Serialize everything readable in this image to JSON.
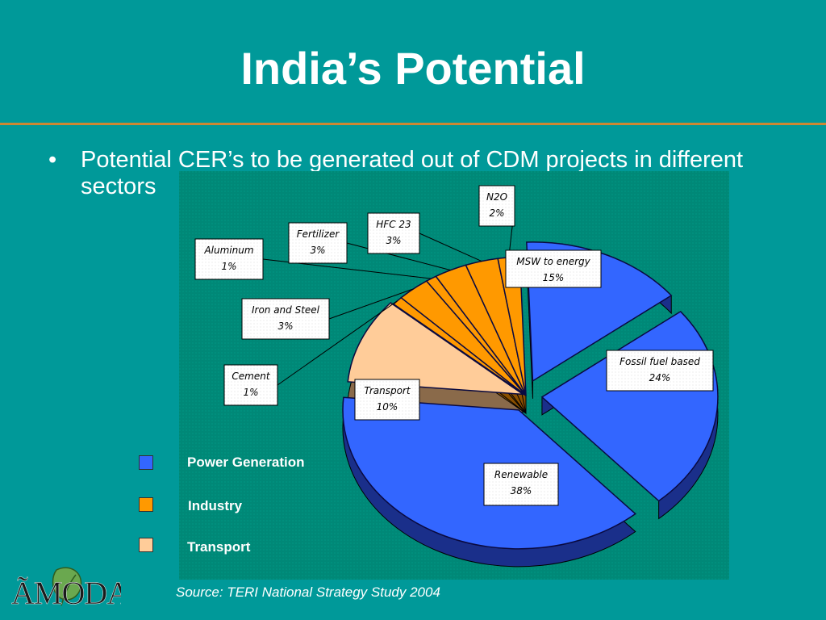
{
  "slide": {
    "title": "India’s Potential",
    "bullet": "Potential CER’s to be generated out of CDM projects in different sectors",
    "source": "Source: TERI National Strategy Study 2004",
    "logo_text": "ÃMODA"
  },
  "legend": [
    {
      "label": "Power Generation",
      "color": "#3366ff"
    },
    {
      "label": "Industry",
      "color": "#ff9900"
    },
    {
      "label": "Transport",
      "color": "#ffcc99"
    }
  ],
  "colors": {
    "background": "#009999",
    "rule": "#cc8833",
    "plot_area": "#00806e",
    "power": "#3366ff",
    "power_dark": "#1a2f8a",
    "industry": "#ff9900",
    "industry_dark": "#8a4f00",
    "transport": "#ffcc99",
    "transport_dark": "#8a6a4a"
  },
  "chart_data": {
    "type": "pie",
    "slices": [
      {
        "label": "MSW to energy",
        "value": 15,
        "group": "Power Generation"
      },
      {
        "label": "Fossil fuel based",
        "value": 24,
        "group": "Power Generation"
      },
      {
        "label": "Renewable",
        "value": 38,
        "group": "Power Generation"
      },
      {
        "label": "Transport",
        "value": 10,
        "group": "Transport"
      },
      {
        "label": "Cement",
        "value": 1,
        "group": "Industry"
      },
      {
        "label": "Iron and Steel",
        "value": 3,
        "group": "Industry"
      },
      {
        "label": "Aluminum",
        "value": 1,
        "group": "Industry"
      },
      {
        "label": "Fertilizer",
        "value": 3,
        "group": "Industry"
      },
      {
        "label": "HFC 23",
        "value": 3,
        "group": "Industry"
      },
      {
        "label": "N2O",
        "value": 2,
        "group": "Industry"
      }
    ],
    "unit": "%"
  }
}
